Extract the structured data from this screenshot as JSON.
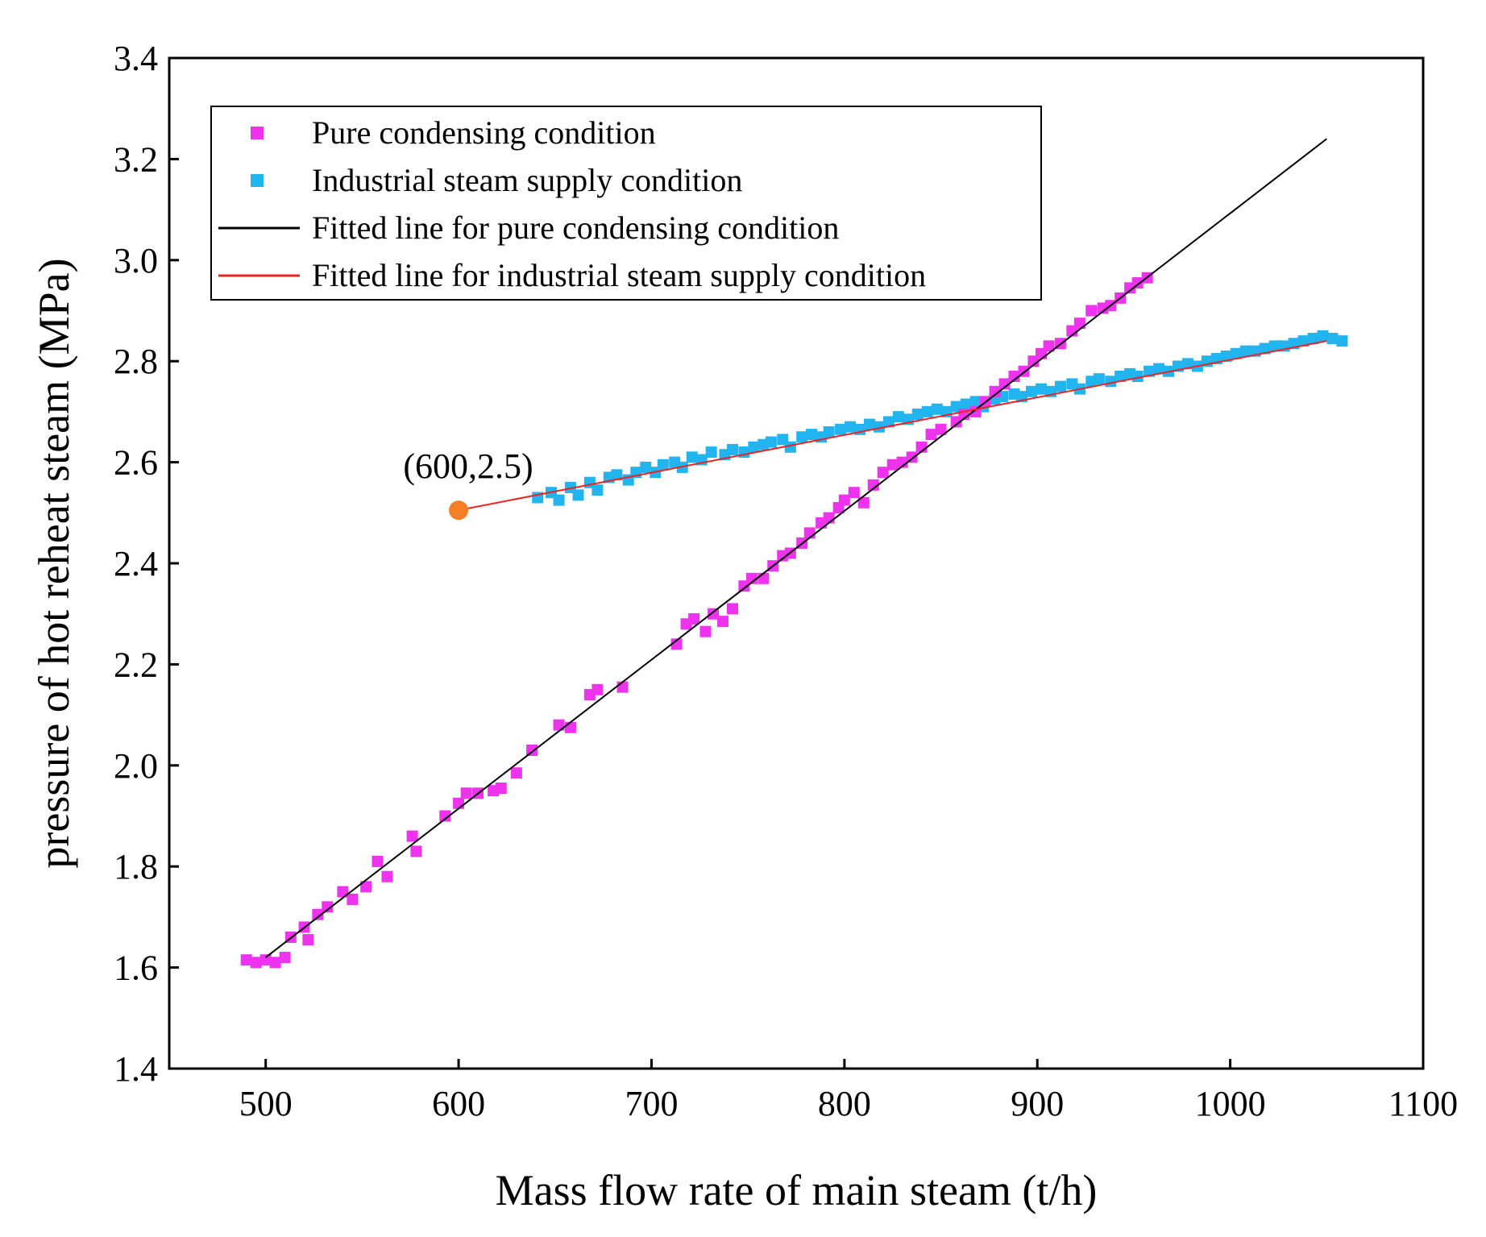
{
  "chart_data": {
    "type": "scatter",
    "title": "",
    "xlabel": "Mass flow rate of main steam (t/h)",
    "ylabel": "pressure of  hot reheat steam (MPa)",
    "xlim": [
      450,
      1100
    ],
    "ylim": [
      1.4,
      3.4
    ],
    "xticks": [
      500,
      600,
      700,
      800,
      900,
      1000,
      1100
    ],
    "yticks": [
      1.4,
      1.6,
      1.8,
      2.0,
      2.2,
      2.4,
      2.6,
      2.8,
      3.0,
      3.2,
      3.4
    ],
    "legend_position": "top-left",
    "colors": {
      "pure": "#ee33ee",
      "industrial": "#22b4ee",
      "fit_pure": "#000000",
      "fit_industrial": "#ee2222",
      "point": "#f47f26"
    },
    "series": [
      {
        "name": "Pure condensing condition",
        "kind": "scatter",
        "marker": "square",
        "points": [
          [
            490,
            1.615
          ],
          [
            495,
            1.61
          ],
          [
            500,
            1.615
          ],
          [
            505,
            1.61
          ],
          [
            510,
            1.62
          ],
          [
            513,
            1.66
          ],
          [
            520,
            1.68
          ],
          [
            522,
            1.655
          ],
          [
            527,
            1.705
          ],
          [
            532,
            1.72
          ],
          [
            540,
            1.75
          ],
          [
            545,
            1.735
          ],
          [
            552,
            1.76
          ],
          [
            558,
            1.81
          ],
          [
            563,
            1.78
          ],
          [
            576,
            1.86
          ],
          [
            578,
            1.83
          ],
          [
            593,
            1.9
          ],
          [
            600,
            1.925
          ],
          [
            604,
            1.945
          ],
          [
            610,
            1.945
          ],
          [
            618,
            1.95
          ],
          [
            622,
            1.955
          ],
          [
            630,
            1.985
          ],
          [
            638,
            2.03
          ],
          [
            652,
            2.08
          ],
          [
            658,
            2.075
          ],
          [
            668,
            2.14
          ],
          [
            672,
            2.15
          ],
          [
            685,
            2.155
          ],
          [
            713,
            2.24
          ],
          [
            718,
            2.28
          ],
          [
            722,
            2.29
          ],
          [
            728,
            2.265
          ],
          [
            732,
            2.3
          ],
          [
            737,
            2.285
          ],
          [
            742,
            2.31
          ],
          [
            748,
            2.355
          ],
          [
            752,
            2.37
          ],
          [
            758,
            2.37
          ],
          [
            763,
            2.395
          ],
          [
            768,
            2.415
          ],
          [
            772,
            2.42
          ],
          [
            778,
            2.44
          ],
          [
            782,
            2.46
          ],
          [
            788,
            2.48
          ],
          [
            792,
            2.49
          ],
          [
            797,
            2.51
          ],
          [
            800,
            2.525
          ],
          [
            805,
            2.54
          ],
          [
            810,
            2.52
          ],
          [
            815,
            2.555
          ],
          [
            820,
            2.58
          ],
          [
            825,
            2.595
          ],
          [
            830,
            2.6
          ],
          [
            835,
            2.61
          ],
          [
            840,
            2.63
          ],
          [
            845,
            2.655
          ],
          [
            850,
            2.665
          ],
          [
            858,
            2.68
          ],
          [
            862,
            2.695
          ],
          [
            868,
            2.7
          ],
          [
            873,
            2.72
          ],
          [
            878,
            2.74
          ],
          [
            883,
            2.755
          ],
          [
            888,
            2.77
          ],
          [
            893,
            2.78
          ],
          [
            898,
            2.8
          ],
          [
            902,
            2.815
          ],
          [
            906,
            2.83
          ],
          [
            912,
            2.835
          ],
          [
            918,
            2.86
          ],
          [
            922,
            2.875
          ],
          [
            928,
            2.9
          ],
          [
            934,
            2.905
          ],
          [
            938,
            2.91
          ],
          [
            943,
            2.925
          ],
          [
            948,
            2.945
          ],
          [
            952,
            2.955
          ],
          [
            957,
            2.965
          ]
        ]
      },
      {
        "name": "Industrial steam supply condition",
        "kind": "scatter",
        "marker": "square",
        "points": [
          [
            641,
            2.53
          ],
          [
            648,
            2.54
          ],
          [
            652,
            2.525
          ],
          [
            658,
            2.55
          ],
          [
            662,
            2.535
          ],
          [
            668,
            2.56
          ],
          [
            672,
            2.545
          ],
          [
            678,
            2.57
          ],
          [
            682,
            2.575
          ],
          [
            688,
            2.565
          ],
          [
            692,
            2.58
          ],
          [
            697,
            2.59
          ],
          [
            702,
            2.58
          ],
          [
            706,
            2.595
          ],
          [
            712,
            2.6
          ],
          [
            716,
            2.59
          ],
          [
            721,
            2.61
          ],
          [
            726,
            2.605
          ],
          [
            731,
            2.62
          ],
          [
            738,
            2.615
          ],
          [
            742,
            2.625
          ],
          [
            748,
            2.62
          ],
          [
            753,
            2.63
          ],
          [
            758,
            2.635
          ],
          [
            762,
            2.64
          ],
          [
            768,
            2.645
          ],
          [
            772,
            2.63
          ],
          [
            778,
            2.65
          ],
          [
            783,
            2.655
          ],
          [
            788,
            2.65
          ],
          [
            792,
            2.66
          ],
          [
            798,
            2.665
          ],
          [
            803,
            2.67
          ],
          [
            808,
            2.665
          ],
          [
            813,
            2.675
          ],
          [
            818,
            2.67
          ],
          [
            823,
            2.68
          ],
          [
            828,
            2.69
          ],
          [
            833,
            2.685
          ],
          [
            838,
            2.695
          ],
          [
            843,
            2.7
          ],
          [
            848,
            2.705
          ],
          [
            853,
            2.7
          ],
          [
            858,
            2.71
          ],
          [
            863,
            2.715
          ],
          [
            868,
            2.72
          ],
          [
            872,
            2.71
          ],
          [
            878,
            2.725
          ],
          [
            882,
            2.73
          ],
          [
            888,
            2.735
          ],
          [
            892,
            2.73
          ],
          [
            897,
            2.74
          ],
          [
            902,
            2.745
          ],
          [
            907,
            2.74
          ],
          [
            912,
            2.75
          ],
          [
            918,
            2.755
          ],
          [
            922,
            2.745
          ],
          [
            928,
            2.76
          ],
          [
            932,
            2.765
          ],
          [
            938,
            2.76
          ],
          [
            943,
            2.77
          ],
          [
            948,
            2.775
          ],
          [
            952,
            2.77
          ],
          [
            958,
            2.78
          ],
          [
            963,
            2.785
          ],
          [
            968,
            2.78
          ],
          [
            973,
            2.79
          ],
          [
            978,
            2.795
          ],
          [
            983,
            2.79
          ],
          [
            988,
            2.8
          ],
          [
            993,
            2.805
          ],
          [
            998,
            2.81
          ],
          [
            1003,
            2.815
          ],
          [
            1008,
            2.82
          ],
          [
            1013,
            2.82
          ],
          [
            1018,
            2.825
          ],
          [
            1023,
            2.83
          ],
          [
            1028,
            2.83
          ],
          [
            1033,
            2.835
          ],
          [
            1038,
            2.84
          ],
          [
            1043,
            2.845
          ],
          [
            1048,
            2.85
          ],
          [
            1053,
            2.845
          ],
          [
            1058,
            2.84
          ]
        ]
      },
      {
        "name": "Fitted line for pure condensing condition",
        "kind": "line",
        "points": [
          [
            500,
            1.62
          ],
          [
            1050,
            3.24
          ]
        ]
      },
      {
        "name": "Fitted line for industrial steam supply condition",
        "kind": "line",
        "points": [
          [
            600,
            2.505
          ],
          [
            1050,
            2.84
          ]
        ]
      }
    ],
    "annotations": [
      {
        "text": "(600,2.5)",
        "x": 600,
        "y": 2.505
      }
    ]
  }
}
